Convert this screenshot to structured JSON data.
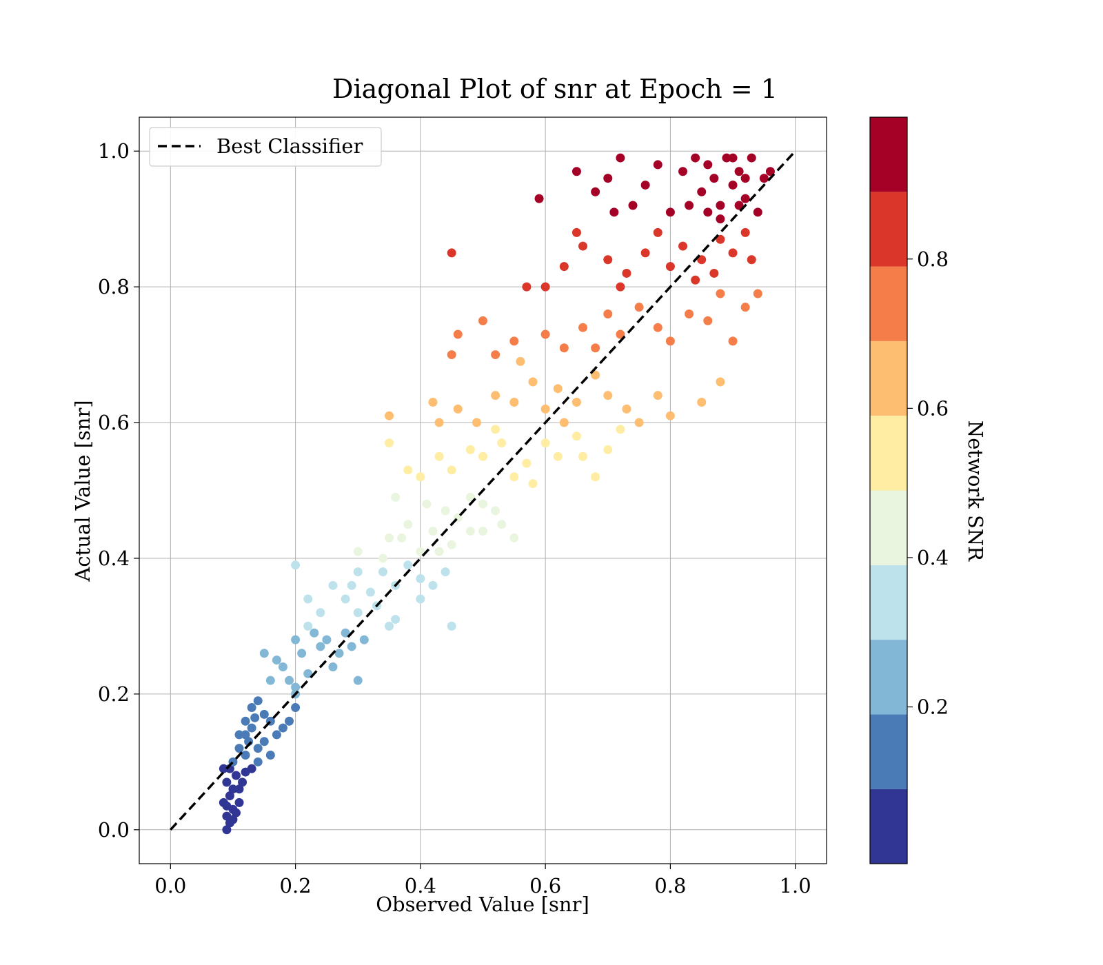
{
  "chart_data": {
    "type": "scatter",
    "title": "Diagonal Plot of snr at Epoch = 1",
    "xlabel": "Observed Value [snr]",
    "ylabel": "Actual Value [snr]",
    "xlim": [
      -0.05,
      1.05
    ],
    "ylim": [
      -0.05,
      1.05
    ],
    "xticks": [
      "0.0",
      "0.2",
      "0.4",
      "0.6",
      "0.8",
      "1.0"
    ],
    "yticks": [
      "0.0",
      "0.2",
      "0.4",
      "0.6",
      "0.8",
      "1.0"
    ],
    "grid": true,
    "legend": {
      "position": "top-left",
      "entries": [
        "Best Classifier"
      ]
    },
    "reference_line": {
      "name": "Best Classifier",
      "x": [
        0,
        1
      ],
      "y": [
        0,
        1
      ],
      "style": "dashed",
      "color": "#000000"
    },
    "colorbar": {
      "label": "Network SNR",
      "range": [
        0,
        1
      ],
      "ticks": [
        "0.2",
        "0.4",
        "0.6",
        "0.8"
      ],
      "bins": [
        {
          "from": 0.0,
          "to": 0.1,
          "color": "#313695"
        },
        {
          "from": 0.1,
          "to": 0.2,
          "color": "#4a7bb7"
        },
        {
          "from": 0.2,
          "to": 0.3,
          "color": "#82b7d6"
        },
        {
          "from": 0.3,
          "to": 0.4,
          "color": "#bde2ec"
        },
        {
          "from": 0.4,
          "to": 0.5,
          "color": "#eaf5e0"
        },
        {
          "from": 0.5,
          "to": 0.6,
          "color": "#feeda2"
        },
        {
          "from": 0.6,
          "to": 0.7,
          "color": "#fdbe71"
        },
        {
          "from": 0.7,
          "to": 0.8,
          "color": "#f57d4a"
        },
        {
          "from": 0.8,
          "to": 0.9,
          "color": "#da372a"
        },
        {
          "from": 0.9,
          "to": 1.0,
          "color": "#a50026"
        }
      ]
    },
    "points": [
      [
        0.09,
        0.0
      ],
      [
        0.095,
        0.01
      ],
      [
        0.09,
        0.02
      ],
      [
        0.1,
        0.03
      ],
      [
        0.085,
        0.04
      ],
      [
        0.095,
        0.05
      ],
      [
        0.1,
        0.06
      ],
      [
        0.09,
        0.07
      ],
      [
        0.11,
        0.06
      ],
      [
        0.105,
        0.08
      ],
      [
        0.095,
        0.09
      ],
      [
        0.12,
        0.085
      ],
      [
        0.1,
        0.1
      ],
      [
        0.11,
        0.04
      ],
      [
        0.09,
        0.035
      ],
      [
        0.1,
        0.015
      ],
      [
        0.115,
        0.07
      ],
      [
        0.13,
        0.09
      ],
      [
        0.085,
        0.09
      ],
      [
        0.105,
        0.025
      ],
      [
        0.11,
        0.12
      ],
      [
        0.12,
        0.14
      ],
      [
        0.13,
        0.15
      ],
      [
        0.14,
        0.12
      ],
      [
        0.15,
        0.17
      ],
      [
        0.13,
        0.18
      ],
      [
        0.16,
        0.16
      ],
      [
        0.14,
        0.19
      ],
      [
        0.12,
        0.16
      ],
      [
        0.11,
        0.14
      ],
      [
        0.15,
        0.13
      ],
      [
        0.17,
        0.14
      ],
      [
        0.16,
        0.11
      ],
      [
        0.18,
        0.15
      ],
      [
        0.14,
        0.1
      ],
      [
        0.12,
        0.11
      ],
      [
        0.125,
        0.13
      ],
      [
        0.135,
        0.165
      ],
      [
        0.19,
        0.16
      ],
      [
        0.2,
        0.18
      ],
      [
        0.2,
        0.2
      ],
      [
        0.16,
        0.22
      ],
      [
        0.18,
        0.24
      ],
      [
        0.2,
        0.21
      ],
      [
        0.22,
        0.23
      ],
      [
        0.15,
        0.26
      ],
      [
        0.17,
        0.25
      ],
      [
        0.19,
        0.22
      ],
      [
        0.21,
        0.26
      ],
      [
        0.24,
        0.27
      ],
      [
        0.23,
        0.29
      ],
      [
        0.25,
        0.28
      ],
      [
        0.27,
        0.26
      ],
      [
        0.26,
        0.24
      ],
      [
        0.28,
        0.29
      ],
      [
        0.29,
        0.27
      ],
      [
        0.3,
        0.22
      ],
      [
        0.22,
        0.3
      ],
      [
        0.2,
        0.28
      ],
      [
        0.31,
        0.28
      ],
      [
        0.3,
        0.32
      ],
      [
        0.28,
        0.34
      ],
      [
        0.26,
        0.36
      ],
      [
        0.32,
        0.35
      ],
      [
        0.34,
        0.38
      ],
      [
        0.36,
        0.36
      ],
      [
        0.33,
        0.33
      ],
      [
        0.38,
        0.39
      ],
      [
        0.4,
        0.37
      ],
      [
        0.42,
        0.36
      ],
      [
        0.44,
        0.38
      ],
      [
        0.36,
        0.31
      ],
      [
        0.3,
        0.38
      ],
      [
        0.35,
        0.3
      ],
      [
        0.45,
        0.3
      ],
      [
        0.22,
        0.34
      ],
      [
        0.24,
        0.32
      ],
      [
        0.4,
        0.34
      ],
      [
        0.2,
        0.39
      ],
      [
        0.29,
        0.36
      ],
      [
        0.3,
        0.41
      ],
      [
        0.35,
        0.43
      ],
      [
        0.38,
        0.45
      ],
      [
        0.4,
        0.41
      ],
      [
        0.42,
        0.44
      ],
      [
        0.44,
        0.47
      ],
      [
        0.46,
        0.46
      ],
      [
        0.48,
        0.44
      ],
      [
        0.5,
        0.48
      ],
      [
        0.52,
        0.47
      ],
      [
        0.55,
        0.43
      ],
      [
        0.36,
        0.49
      ],
      [
        0.34,
        0.4
      ],
      [
        0.45,
        0.42
      ],
      [
        0.48,
        0.49
      ],
      [
        0.5,
        0.44
      ],
      [
        0.41,
        0.48
      ],
      [
        0.53,
        0.45
      ],
      [
        0.43,
        0.41
      ],
      [
        0.37,
        0.43
      ],
      [
        0.4,
        0.52
      ],
      [
        0.43,
        0.55
      ],
      [
        0.45,
        0.53
      ],
      [
        0.48,
        0.56
      ],
      [
        0.5,
        0.55
      ],
      [
        0.53,
        0.57
      ],
      [
        0.55,
        0.52
      ],
      [
        0.57,
        0.54
      ],
      [
        0.6,
        0.57
      ],
      [
        0.62,
        0.55
      ],
      [
        0.65,
        0.58
      ],
      [
        0.68,
        0.52
      ],
      [
        0.7,
        0.56
      ],
      [
        0.35,
        0.57
      ],
      [
        0.38,
        0.53
      ],
      [
        0.52,
        0.59
      ],
      [
        0.58,
        0.51
      ],
      [
        0.63,
        0.6
      ],
      [
        0.66,
        0.55
      ],
      [
        0.72,
        0.59
      ],
      [
        0.43,
        0.6
      ],
      [
        0.46,
        0.62
      ],
      [
        0.49,
        0.6
      ],
      [
        0.52,
        0.64
      ],
      [
        0.55,
        0.63
      ],
      [
        0.58,
        0.66
      ],
      [
        0.6,
        0.62
      ],
      [
        0.62,
        0.65
      ],
      [
        0.65,
        0.63
      ],
      [
        0.68,
        0.67
      ],
      [
        0.7,
        0.64
      ],
      [
        0.73,
        0.62
      ],
      [
        0.75,
        0.6
      ],
      [
        0.78,
        0.64
      ],
      [
        0.8,
        0.61
      ],
      [
        0.85,
        0.63
      ],
      [
        0.88,
        0.66
      ],
      [
        0.35,
        0.61
      ],
      [
        0.42,
        0.63
      ],
      [
        0.56,
        0.69
      ],
      [
        0.52,
        0.7
      ],
      [
        0.55,
        0.72
      ],
      [
        0.6,
        0.73
      ],
      [
        0.63,
        0.71
      ],
      [
        0.66,
        0.74
      ],
      [
        0.68,
        0.71
      ],
      [
        0.7,
        0.76
      ],
      [
        0.72,
        0.73
      ],
      [
        0.75,
        0.77
      ],
      [
        0.78,
        0.74
      ],
      [
        0.8,
        0.72
      ],
      [
        0.83,
        0.76
      ],
      [
        0.86,
        0.75
      ],
      [
        0.9,
        0.72
      ],
      [
        0.92,
        0.77
      ],
      [
        0.45,
        0.7
      ],
      [
        0.46,
        0.73
      ],
      [
        0.5,
        0.75
      ],
      [
        0.94,
        0.79
      ],
      [
        0.88,
        0.79
      ],
      [
        0.6,
        0.8
      ],
      [
        0.63,
        0.83
      ],
      [
        0.66,
        0.86
      ],
      [
        0.7,
        0.84
      ],
      [
        0.73,
        0.82
      ],
      [
        0.76,
        0.85
      ],
      [
        0.8,
        0.83
      ],
      [
        0.82,
        0.86
      ],
      [
        0.85,
        0.84
      ],
      [
        0.88,
        0.87
      ],
      [
        0.9,
        0.85
      ],
      [
        0.92,
        0.88
      ],
      [
        0.78,
        0.88
      ],
      [
        0.84,
        0.81
      ],
      [
        0.57,
        0.8
      ],
      [
        0.45,
        0.85
      ],
      [
        0.65,
        0.88
      ],
      [
        0.72,
        0.8
      ],
      [
        0.87,
        0.82
      ],
      [
        0.93,
        0.84
      ],
      [
        0.59,
        0.93
      ],
      [
        0.65,
        0.97
      ],
      [
        0.68,
        0.94
      ],
      [
        0.7,
        0.96
      ],
      [
        0.72,
        0.99
      ],
      [
        0.74,
        0.92
      ],
      [
        0.76,
        0.95
      ],
      [
        0.78,
        0.98
      ],
      [
        0.8,
        0.91
      ],
      [
        0.82,
        0.97
      ],
      [
        0.84,
        0.99
      ],
      [
        0.85,
        0.94
      ],
      [
        0.87,
        0.96
      ],
      [
        0.88,
        0.92
      ],
      [
        0.89,
        0.99
      ],
      [
        0.9,
        0.95
      ],
      [
        0.91,
        0.97
      ],
      [
        0.92,
        0.93
      ],
      [
        0.93,
        0.99
      ],
      [
        0.94,
        0.91
      ],
      [
        0.95,
        0.96
      ],
      [
        0.86,
        0.98
      ],
      [
        0.88,
        0.9
      ],
      [
        0.9,
        0.99
      ],
      [
        0.92,
        0.96
      ],
      [
        0.71,
        0.91
      ],
      [
        0.83,
        0.92
      ],
      [
        0.86,
        0.91
      ],
      [
        0.91,
        0.92
      ],
      [
        0.96,
        0.97
      ]
    ]
  }
}
